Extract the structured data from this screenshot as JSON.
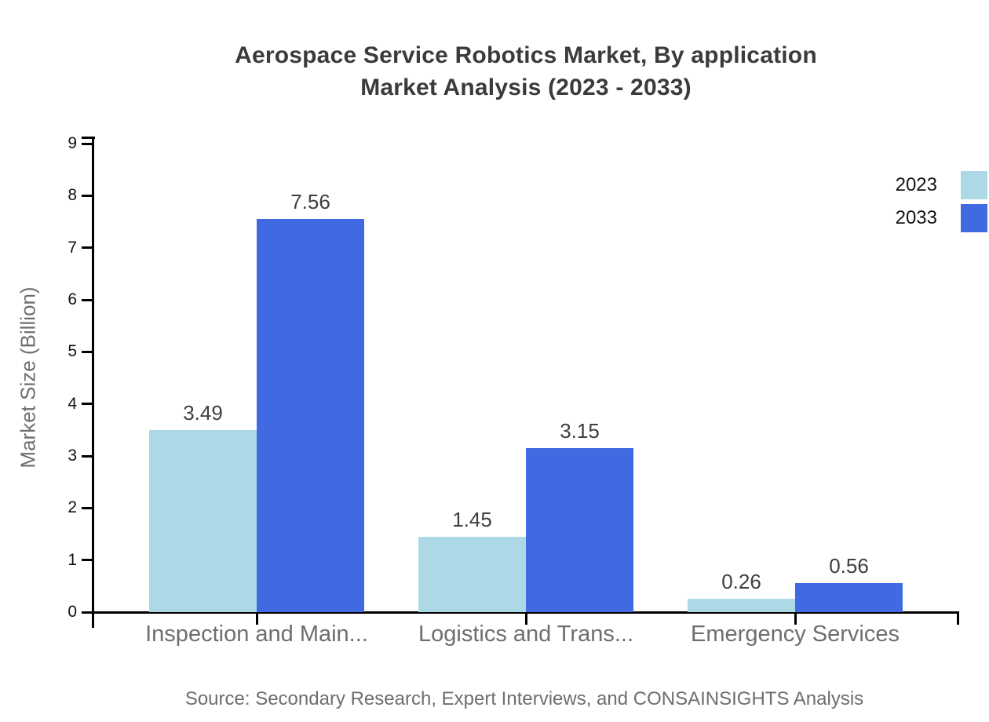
{
  "title": {
    "line1": "Aerospace Service Robotics Market, By application",
    "line2": "Market Analysis (2023 - 2033)"
  },
  "source": "Source: Secondary Research, Expert Interviews, and CONSAINSIGHTS Analysis",
  "chart_data": {
    "type": "bar",
    "categories": [
      "Inspection and Main...",
      "Logistics and Trans...",
      "Emergency Services"
    ],
    "series": [
      {
        "name": "2023",
        "color": "#ADD8E6",
        "values": [
          3.49,
          1.45,
          0.26
        ]
      },
      {
        "name": "2033",
        "color": "#4169E1",
        "values": [
          7.56,
          3.15,
          0.56
        ]
      }
    ],
    "title": "Aerospace Service Robotics Market, By application Market Analysis (2023 - 2033)",
    "xlabel": "",
    "ylabel": "Market Size (Billion)",
    "ylim": [
      0,
      9
    ],
    "yticks": [
      0,
      1,
      2,
      3,
      4,
      5,
      6,
      7,
      8,
      9
    ],
    "grid": false,
    "legend_position": "top-right",
    "value_label_decimals": 2,
    "axis_color": "#000000",
    "text_colors": {
      "title": "#3b3b3b",
      "tick_labels": "#111111",
      "category_labels": "#6e6e6e",
      "value_labels": "#3f3f3f",
      "source": "#6e6e6e"
    }
  }
}
